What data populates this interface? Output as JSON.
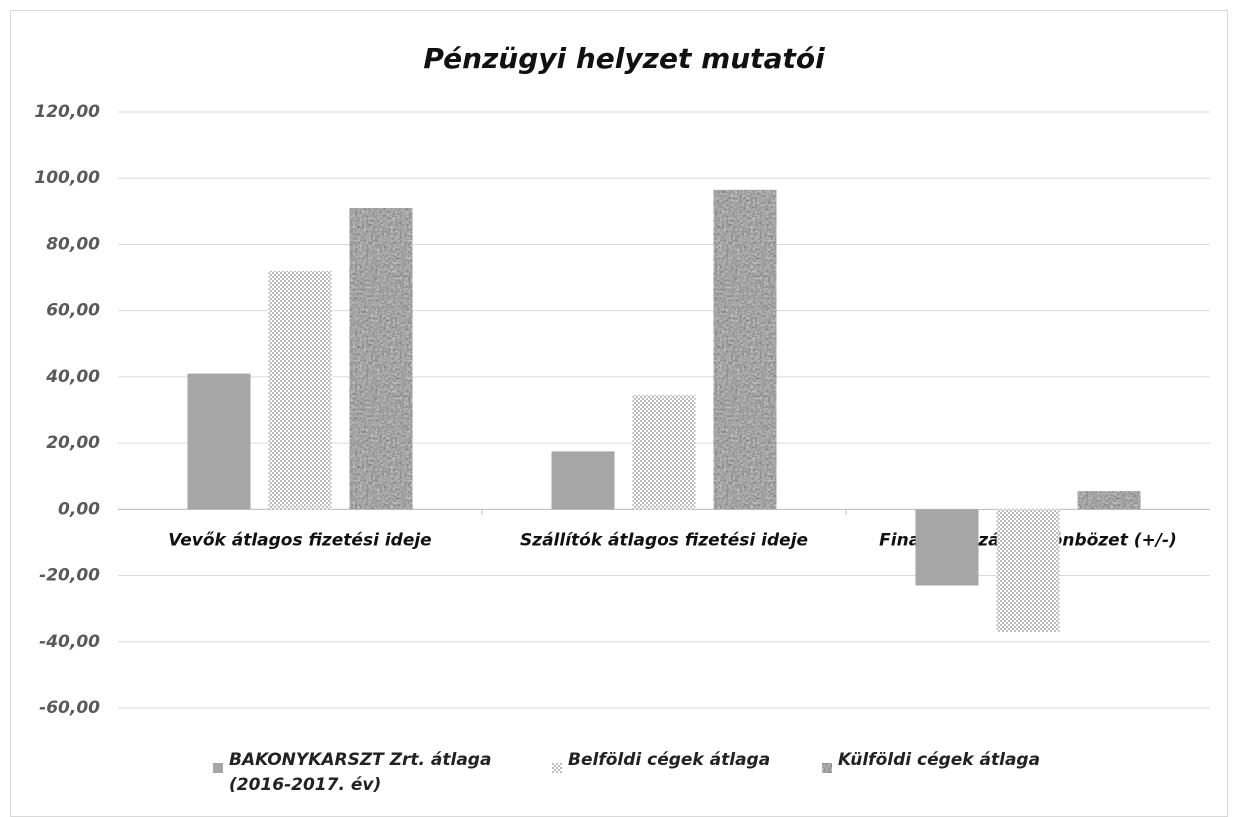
{
  "chart_data": {
    "type": "bar",
    "title": "Pénzügyi helyzet mutatói",
    "categories": [
      "Vevők átlagos fizetési ideje",
      "Szállítók átlagos fizetési ideje",
      "Finanszírozási különbözet (+/-)"
    ],
    "series": [
      {
        "name": "BAKONYKARSZT Zrt. átlaga (2016-2017. év)",
        "color": "#a6a6a6",
        "pattern": "solid",
        "values": [
          41,
          17.5,
          -23
        ]
      },
      {
        "name": "Belföldi cégek átlaga",
        "color": "#bdbdbd",
        "pattern": "dots",
        "values": [
          72,
          34.5,
          -37
        ]
      },
      {
        "name": "Külföldi cégek átlaga",
        "color": "#8c8c8c",
        "pattern": "noise",
        "values": [
          91,
          96.5,
          5.5
        ]
      }
    ],
    "ylim": [
      -60,
      120
    ],
    "yticks": [
      {
        "value": -60,
        "label": "-60,00"
      },
      {
        "value": -40,
        "label": "-40,00"
      },
      {
        "value": -20,
        "label": "-20,00"
      },
      {
        "value": 0,
        "label": "0,00"
      },
      {
        "value": 20,
        "label": "20,00"
      },
      {
        "value": 40,
        "label": "40,00"
      },
      {
        "value": 60,
        "label": "60,00"
      },
      {
        "value": 80,
        "label": "80,00"
      },
      {
        "value": 100,
        "label": "100,00"
      },
      {
        "value": 120,
        "label": "120,00"
      }
    ],
    "grid": true
  }
}
